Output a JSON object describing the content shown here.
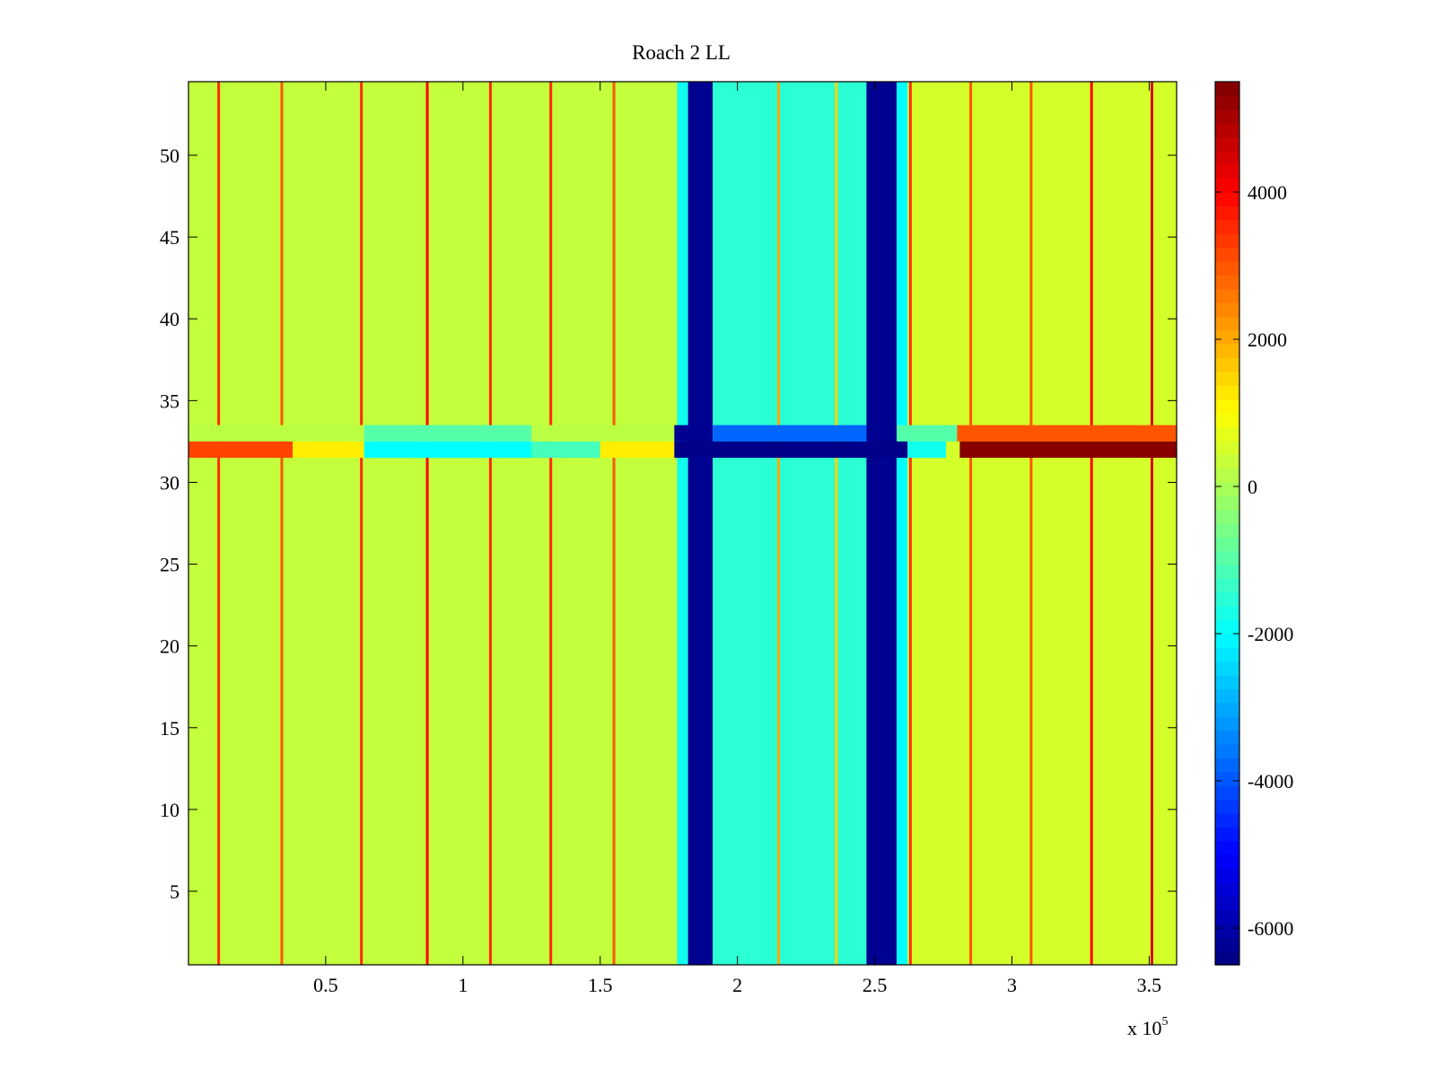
{
  "chart_data": {
    "type": "heatmap",
    "title": "Roach 2 LL",
    "xlabel": "",
    "ylabel": "",
    "xlim": [
      0,
      360000
    ],
    "ylim": [
      0.5,
      54.5
    ],
    "x_tick_values": [
      50000,
      100000,
      150000,
      200000,
      250000,
      300000,
      350000
    ],
    "x_tick_labels": [
      "0.5",
      "1",
      "1.5",
      "2",
      "2.5",
      "3",
      "3.5"
    ],
    "x_multiplier": {
      "base": "x 10",
      "exponent": "5"
    },
    "y_tick_values": [
      5,
      10,
      15,
      20,
      25,
      30,
      35,
      40,
      45,
      50
    ],
    "y_tick_labels": [
      "5",
      "10",
      "15",
      "20",
      "25",
      "30",
      "35",
      "40",
      "45",
      "50"
    ],
    "colorbar": {
      "colormap": "jet",
      "clim": [
        -6500,
        5500
      ],
      "tick_values": [
        -6000,
        -4000,
        -2000,
        0,
        2000,
        4000
      ],
      "tick_labels": [
        "-6000",
        "-4000",
        "-2000",
        "0",
        "2000",
        "4000"
      ]
    },
    "rows": 54,
    "background_value": 200,
    "column_bands": [
      {
        "x_range": [
          0,
          178000
        ],
        "value": 300
      },
      {
        "x_range": [
          178000,
          182000
        ],
        "value": -1800
      },
      {
        "x_range": [
          182000,
          191000
        ],
        "value": -6300
      },
      {
        "x_range": [
          191000,
          247000
        ],
        "value": -1500
      },
      {
        "x_range": [
          247000,
          258000
        ],
        "value": -6300
      },
      {
        "x_range": [
          258000,
          262000
        ],
        "value": -2000
      },
      {
        "x_range": [
          262000,
          360000
        ],
        "value": 500
      }
    ],
    "spike_lines": [
      {
        "x": 11000,
        "value": 3500
      },
      {
        "x": 34000,
        "value": 3000
      },
      {
        "x": 63000,
        "value": 3500
      },
      {
        "x": 87000,
        "value": 4000
      },
      {
        "x": 110000,
        "value": 3500
      },
      {
        "x": 132000,
        "value": 3500
      },
      {
        "x": 155000,
        "value": 3000
      },
      {
        "x": 215000,
        "value": 2000
      },
      {
        "x": 236000,
        "value": 1500
      },
      {
        "x": 263000,
        "value": 3500
      },
      {
        "x": 285000,
        "value": 3000
      },
      {
        "x": 307000,
        "value": 3000
      },
      {
        "x": 329000,
        "value": 4000
      },
      {
        "x": 351000,
        "value": 4500
      }
    ],
    "row_32_segments": [
      {
        "x_range": [
          0,
          38000
        ],
        "value": 3200
      },
      {
        "x_range": [
          38000,
          64000
        ],
        "value": 1200
      },
      {
        "x_range": [
          64000,
          125000
        ],
        "value": -2000
      },
      {
        "x_range": [
          125000,
          150000
        ],
        "value": -1200
      },
      {
        "x_range": [
          150000,
          177000
        ],
        "value": 1200
      },
      {
        "x_range": [
          177000,
          262000
        ],
        "value": -6400
      },
      {
        "x_range": [
          262000,
          276000
        ],
        "value": -1800
      },
      {
        "x_range": [
          276000,
          281000
        ],
        "value": 500
      },
      {
        "x_range": [
          281000,
          360000
        ],
        "value": 5400
      }
    ],
    "row_33_segments": [
      {
        "x_range": [
          0,
          64000
        ],
        "value": 200
      },
      {
        "x_range": [
          64000,
          125000
        ],
        "value": -1000
      },
      {
        "x_range": [
          125000,
          177000
        ],
        "value": 200
      },
      {
        "x_range": [
          177000,
          191000
        ],
        "value": -6300
      },
      {
        "x_range": [
          191000,
          247000
        ],
        "value": -3800
      },
      {
        "x_range": [
          247000,
          258000
        ],
        "value": -6300
      },
      {
        "x_range": [
          258000,
          280000
        ],
        "value": -1000
      },
      {
        "x_range": [
          280000,
          360000
        ],
        "value": 3000
      }
    ]
  }
}
